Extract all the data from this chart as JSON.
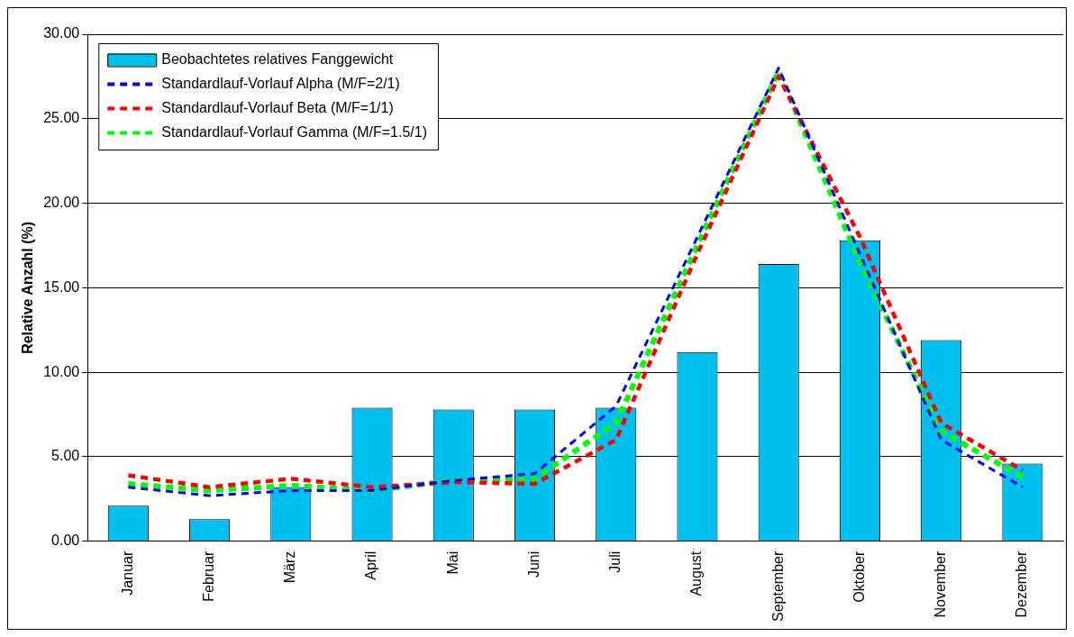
{
  "chart_data": {
    "type": "bar",
    "ylabel": "Relative Anzahl (%)",
    "categories": [
      "Januar",
      "Februar",
      "März",
      "April",
      "Mai",
      "Juni",
      "Juli",
      "August",
      "September",
      "Oktober",
      "November",
      "Dezember"
    ],
    "series": [
      {
        "name": "Beobachtetes relatives Fanggewicht",
        "color": "#00c0f0",
        "values": [
          2.1,
          1.3,
          3.2,
          7.9,
          7.8,
          7.8,
          7.9,
          11.2,
          16.4,
          17.8,
          11.9,
          4.6
        ]
      },
      {
        "name": "Standardlauf-Vorlauf Alpha (M/F=2/1)",
        "type": "line",
        "color": "#0000ff",
        "line_style": "dashed",
        "values": [
          3.2,
          2.7,
          3.0,
          3.0,
          3.6,
          4.0,
          8.0,
          18.0,
          28.0,
          17.0,
          6.0,
          3.2
        ]
      },
      {
        "name": "Standardlauf-Vorlauf Beta (M/F=1/1)",
        "type": "line",
        "color": "#ff0000",
        "line_style": "dashed",
        "values": [
          3.9,
          3.2,
          3.7,
          3.2,
          3.5,
          3.4,
          6.0,
          17.0,
          27.5,
          18.0,
          7.0,
          4.2
        ]
      },
      {
        "name": "Standardlauf-Vorlauf Gamma (M/F=1.5/1)",
        "type": "line",
        "color": "#00ff00",
        "line_style": "dashed",
        "values": [
          3.4,
          3.0,
          3.3,
          3.0,
          3.6,
          3.7,
          7.0,
          17.5,
          27.8,
          16.5,
          6.5,
          3.8
        ]
      }
    ],
    "ylim": [
      0,
      30
    ],
    "yticks": [
      {
        "value": 0,
        "label": "0.00"
      },
      {
        "value": 5,
        "label": "5.00"
      },
      {
        "value": 10,
        "label": "10.00"
      },
      {
        "value": 15,
        "label": "15.00"
      },
      {
        "value": 20,
        "label": "20.00"
      },
      {
        "value": 25,
        "label": "25.00"
      },
      {
        "value": 30,
        "label": "30.00"
      }
    ],
    "grid": "y",
    "legend": "top left",
    "marker": "none"
  }
}
